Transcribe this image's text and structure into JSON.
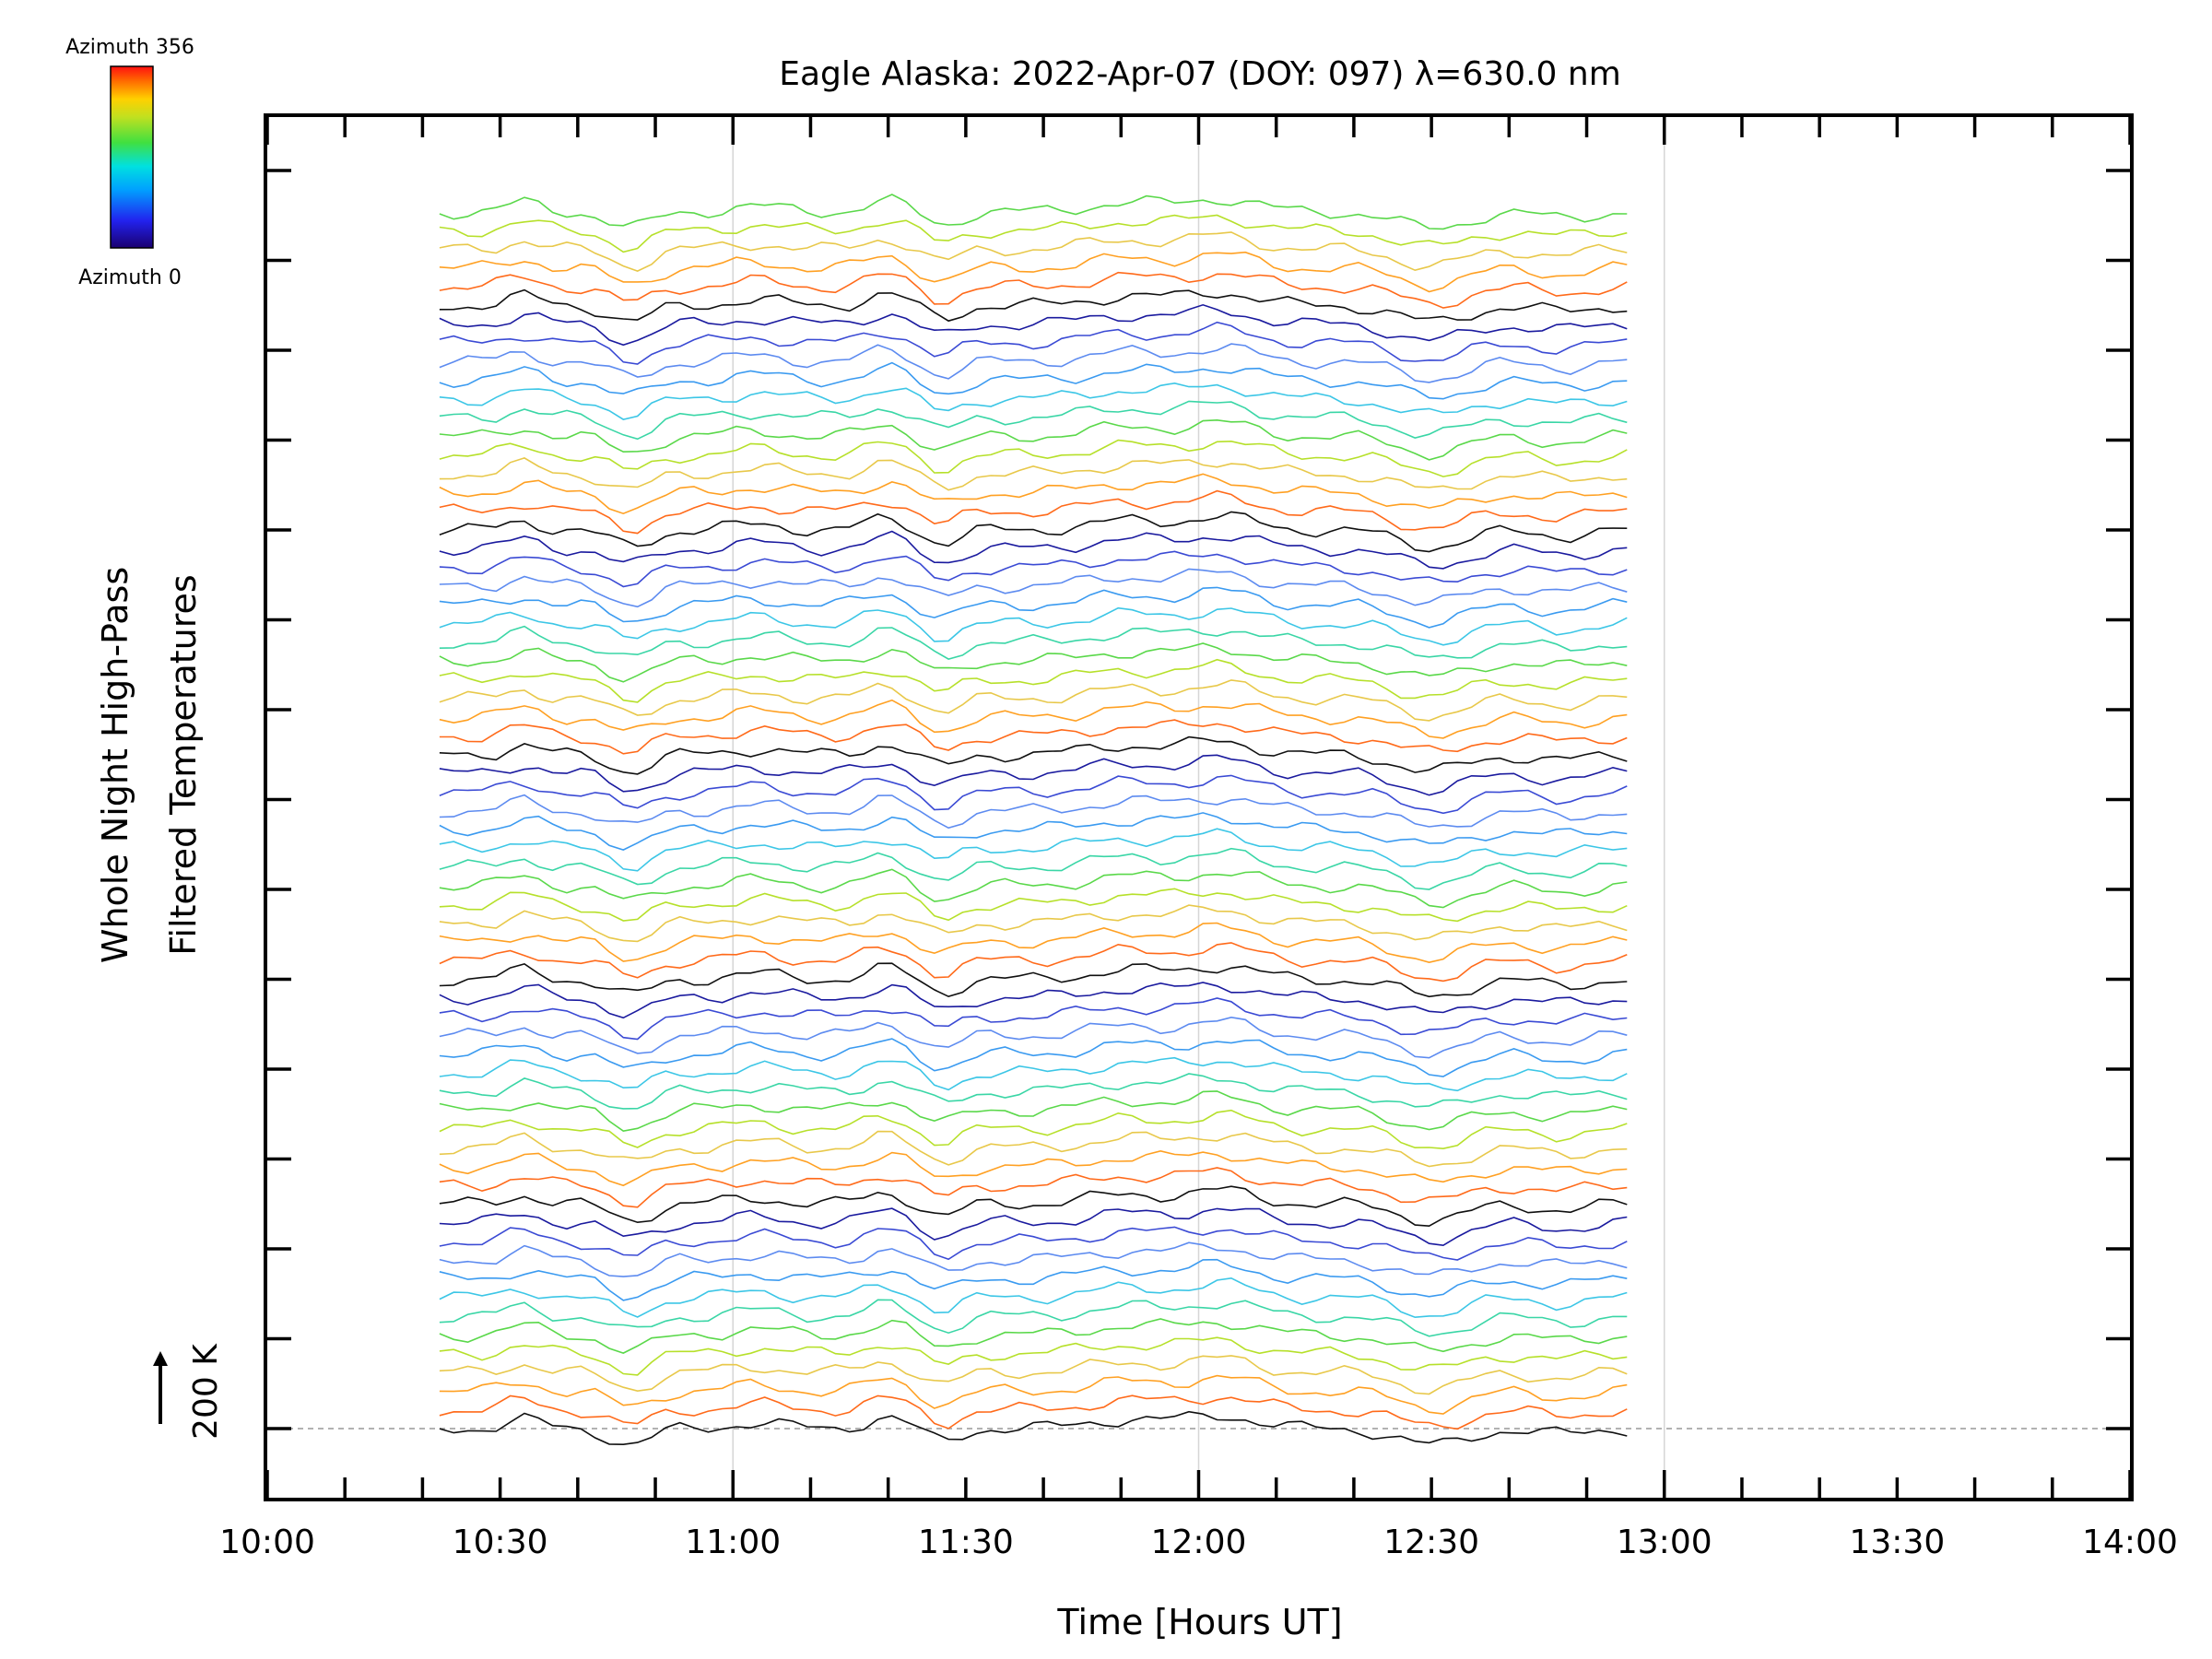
{
  "chart_data": {
    "type": "line",
    "title": "Eagle Alaska: 2022-Apr-07 (DOY: 097) λ=630.0 nm",
    "xlabel": "Time [Hours UT]",
    "ylabel_line1": "Whole Night High-Pass",
    "ylabel_line2": "Filtered Temperatures",
    "scale_label": "200 K",
    "xlim_hours": [
      10.0,
      14.0
    ],
    "x_tick_labels": [
      "10:00",
      "10:30",
      "11:00",
      "11:30",
      "12:00",
      "12:30",
      "13:00",
      "13:30",
      "14:00"
    ],
    "x_gridlines_hours": [
      11.0,
      12.0,
      13.0
    ],
    "data_time_range_hours": [
      10.37,
      12.92
    ],
    "series_count": 66,
    "colorbar": {
      "top_label": "Azimuth 356",
      "bottom_label": "Azimuth 0",
      "colormap": "rainbow",
      "colors": [
        "#1a0070",
        "#2222ee",
        "#00a0ff",
        "#00e0e0",
        "#40e040",
        "#c0e020",
        "#ffd000",
        "#ff6a00",
        "#ff1010"
      ]
    },
    "azimuth_pattern_within_group": [
      "#101010",
      "#ff6a1a",
      "#ffa022",
      "#e8c84a",
      "#b6e02a",
      "#5ad84a",
      "#3ad6a6",
      "#3cc6e6",
      "#3a9af0",
      "#5d8bf0",
      "#3a4ad4",
      "#1a1a9e"
    ],
    "grid": true,
    "legend_placement": "top-left colorbar"
  }
}
